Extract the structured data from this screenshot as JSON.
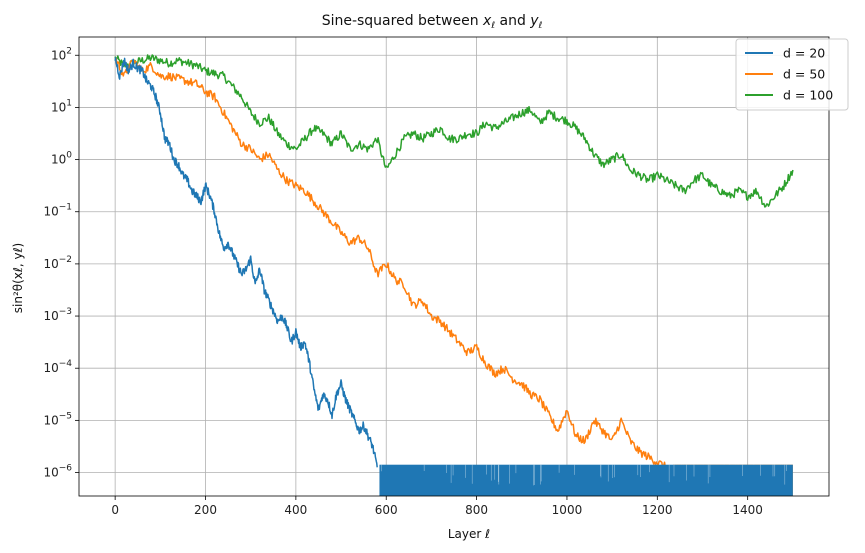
{
  "chart_data": {
    "type": "line",
    "title_prefix": "Sine-squared between ",
    "title_x": "x",
    "title_mid": " and ",
    "title_y": "y",
    "title_sub": "ℓ",
    "xlabel": "Layer ℓ",
    "ylabel": "sin²θ(xℓ, yℓ)",
    "xlim": [
      -80,
      1580
    ],
    "ylim_exponent": [
      -6.45,
      2.35
    ],
    "yscale": "log",
    "grid": true,
    "legend_position": "top-right",
    "xticks": [
      0,
      200,
      400,
      600,
      800,
      1000,
      1200,
      1400
    ],
    "ytick_exponents": [
      2,
      1,
      0,
      -1,
      -2,
      -3,
      -4,
      -5,
      -6
    ],
    "ytick_base": "10",
    "series": [
      {
        "name": "d = 20",
        "color": "#1f77b4",
        "x": [
          0,
          10,
          20,
          30,
          40,
          50,
          60,
          70,
          80,
          90,
          100,
          110,
          120,
          130,
          140,
          150,
          160,
          170,
          180,
          190,
          200,
          210,
          220,
          230,
          240,
          250,
          260,
          270,
          280,
          290,
          300,
          310,
          320,
          330,
          340,
          350,
          360,
          370,
          380,
          390,
          400,
          410,
          420,
          430,
          440,
          450,
          460,
          470,
          480,
          490,
          500,
          510,
          520,
          530,
          540,
          550,
          560,
          570,
          580
        ],
        "log10_y": [
          1.95,
          1.6,
          1.9,
          1.7,
          1.85,
          1.75,
          1.7,
          1.5,
          1.4,
          1.2,
          0.9,
          0.4,
          0.3,
          0.0,
          -0.1,
          -0.3,
          -0.4,
          -0.6,
          -0.7,
          -0.8,
          -0.5,
          -0.7,
          -1.0,
          -1.4,
          -1.7,
          -1.6,
          -1.8,
          -2.0,
          -2.2,
          -2.1,
          -1.9,
          -2.4,
          -2.1,
          -2.5,
          -2.7,
          -2.9,
          -3.1,
          -3.0,
          -3.2,
          -3.5,
          -3.3,
          -3.6,
          -3.5,
          -3.9,
          -4.4,
          -4.8,
          -4.5,
          -4.6,
          -4.9,
          -4.5,
          -4.3,
          -4.6,
          -4.8,
          -5.0,
          -5.2,
          -5.1,
          -5.3,
          -5.5,
          -5.9
        ],
        "floor_start_x": 585,
        "floor_end_x": 1500,
        "floor_top_log10": -5.85,
        "floor_bottom_log10": -6.45
      },
      {
        "name": "d = 50",
        "color": "#ff7f0e",
        "x": [
          0,
          20,
          40,
          60,
          80,
          100,
          120,
          140,
          160,
          180,
          200,
          220,
          240,
          260,
          280,
          300,
          320,
          340,
          360,
          380,
          400,
          420,
          440,
          460,
          480,
          500,
          520,
          540,
          560,
          580,
          600,
          620,
          640,
          660,
          680,
          700,
          720,
          740,
          760,
          780,
          800,
          820,
          840,
          860,
          880,
          900,
          920,
          940,
          960,
          980,
          1000,
          1020,
          1040,
          1060,
          1080,
          1100,
          1120,
          1140,
          1160,
          1180,
          1200,
          1220,
          1240
        ],
        "log10_y": [
          1.95,
          1.6,
          1.9,
          1.7,
          1.8,
          1.6,
          1.6,
          1.55,
          1.5,
          1.45,
          1.3,
          1.2,
          0.9,
          0.6,
          0.3,
          0.2,
          0.0,
          0.1,
          -0.2,
          -0.4,
          -0.5,
          -0.6,
          -0.8,
          -1.0,
          -1.2,
          -1.4,
          -1.6,
          -1.5,
          -1.7,
          -2.2,
          -2.0,
          -2.3,
          -2.4,
          -2.8,
          -2.7,
          -3.0,
          -3.1,
          -3.3,
          -3.5,
          -3.7,
          -3.6,
          -3.9,
          -4.1,
          -4.0,
          -4.2,
          -4.3,
          -4.5,
          -4.6,
          -4.9,
          -5.2,
          -4.8,
          -5.3,
          -5.4,
          -5.0,
          -5.2,
          -5.4,
          -5.0,
          -5.4,
          -5.6,
          -5.7,
          -5.8,
          -5.9,
          -6.0
        ],
        "floor_start_x": 1235,
        "floor_end_x": 1500,
        "floor_top_log10": -5.85,
        "floor_bottom_log10": -6.45
      },
      {
        "name": "d = 100",
        "color": "#2ca02c",
        "x": [
          0,
          20,
          40,
          60,
          80,
          100,
          120,
          140,
          160,
          180,
          200,
          220,
          240,
          260,
          280,
          300,
          320,
          340,
          360,
          380,
          400,
          420,
          440,
          460,
          480,
          500,
          520,
          540,
          560,
          580,
          600,
          620,
          640,
          660,
          680,
          700,
          720,
          740,
          760,
          780,
          800,
          820,
          840,
          860,
          880,
          900,
          920,
          940,
          960,
          980,
          1000,
          1020,
          1040,
          1060,
          1080,
          1100,
          1120,
          1140,
          1160,
          1180,
          1200,
          1220,
          1240,
          1260,
          1280,
          1300,
          1320,
          1340,
          1360,
          1380,
          1400,
          1420,
          1440,
          1460,
          1480,
          1500
        ],
        "log10_y": [
          1.95,
          1.8,
          1.85,
          1.9,
          1.95,
          1.9,
          1.85,
          1.9,
          1.85,
          1.8,
          1.7,
          1.65,
          1.6,
          1.4,
          1.2,
          0.9,
          0.7,
          0.8,
          0.5,
          0.3,
          0.2,
          0.4,
          0.6,
          0.5,
          0.3,
          0.5,
          0.2,
          0.3,
          0.2,
          0.4,
          -0.2,
          0.1,
          0.4,
          0.5,
          0.4,
          0.5,
          0.6,
          0.4,
          0.4,
          0.5,
          0.5,
          0.7,
          0.6,
          0.7,
          0.8,
          0.9,
          0.95,
          0.7,
          0.9,
          0.8,
          0.75,
          0.6,
          0.4,
          0.1,
          -0.1,
          0.0,
          0.1,
          -0.2,
          -0.3,
          -0.4,
          -0.3,
          -0.4,
          -0.5,
          -0.6,
          -0.4,
          -0.3,
          -0.5,
          -0.6,
          -0.7,
          -0.6,
          -0.7,
          -0.6,
          -0.9,
          -0.7,
          -0.5,
          -0.2
        ]
      }
    ]
  }
}
